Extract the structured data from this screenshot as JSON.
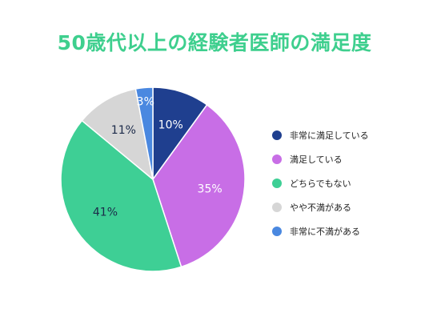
{
  "chart_data": {
    "type": "pie",
    "title": "50歳代以上の経験者医師の満足度",
    "start_angle_deg": 0,
    "direction": "clockwise",
    "slices": [
      {
        "label": "非常に満足している",
        "value": 10,
        "display": "10%",
        "color": "#1f3f8f",
        "label_color": "#ffffff"
      },
      {
        "label": "満足している",
        "value": 35,
        "display": "35%",
        "color": "#c86ee6",
        "label_color": "#ffffff"
      },
      {
        "label": "どちらでもない",
        "value": 41,
        "display": "41%",
        "color": "#3ecf95",
        "label_color": "#1c2b4a"
      },
      {
        "label": "やや不満がある",
        "value": 11,
        "display": "11%",
        "color": "#d6d6d6",
        "label_color": "#1c2b4a"
      },
      {
        "label": "非常に不満がある",
        "value": 3,
        "display": "3%",
        "color": "#4a88e0",
        "label_color": "#ffffff"
      }
    ],
    "legend_position": "right"
  }
}
